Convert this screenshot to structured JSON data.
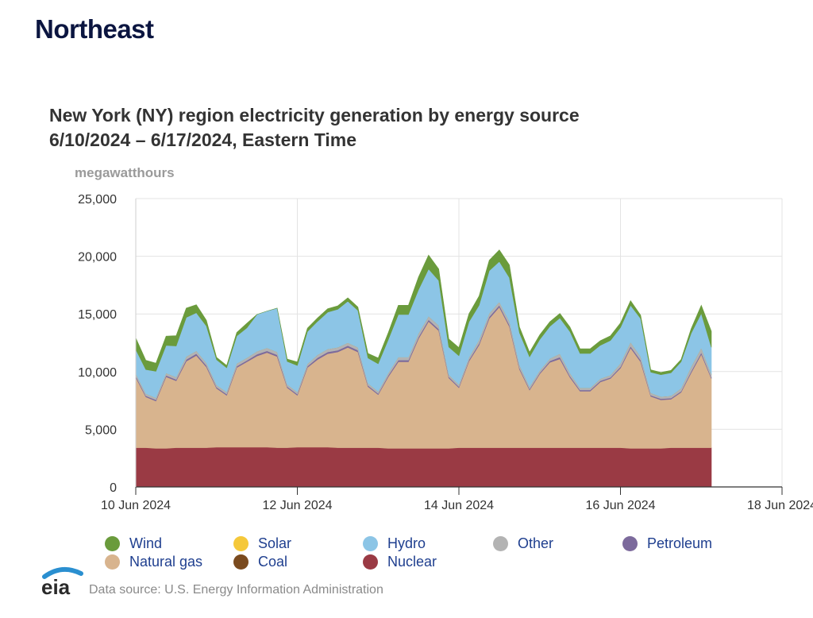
{
  "page": {
    "section_title": "Northeast"
  },
  "chart_data": {
    "type": "area",
    "stacked": true,
    "title": "New York (NY) region electricity generation by energy source",
    "subtitle": "6/10/2024 – 6/17/2024, Eastern Time",
    "ylabel": "megawatthours",
    "ylim": [
      0,
      25000
    ],
    "yticks": [
      "0",
      "5,000",
      "10,000",
      "15,000",
      "20,000",
      "25,000"
    ],
    "xlim": [
      "2024-06-10T00:00",
      "2024-06-18T00:00"
    ],
    "xticks": [
      "10 Jun 2024",
      "12 Jun 2024",
      "14 Jun 2024",
      "16 Jun 2024",
      "18 Jun 2024"
    ],
    "grid": true,
    "legend_position": "bottom",
    "x": [
      "2024-06-10T00:00",
      "2024-06-10T03:00",
      "2024-06-10T06:00",
      "2024-06-10T09:00",
      "2024-06-10T12:00",
      "2024-06-10T15:00",
      "2024-06-10T18:00",
      "2024-06-10T21:00",
      "2024-06-11T00:00",
      "2024-06-11T03:00",
      "2024-06-11T06:00",
      "2024-06-11T09:00",
      "2024-06-11T12:00",
      "2024-06-11T15:00",
      "2024-06-11T18:00",
      "2024-06-11T21:00",
      "2024-06-12T00:00",
      "2024-06-12T03:00",
      "2024-06-12T06:00",
      "2024-06-12T09:00",
      "2024-06-12T12:00",
      "2024-06-12T15:00",
      "2024-06-12T18:00",
      "2024-06-12T21:00",
      "2024-06-13T00:00",
      "2024-06-13T03:00",
      "2024-06-13T06:00",
      "2024-06-13T09:00",
      "2024-06-13T12:00",
      "2024-06-13T15:00",
      "2024-06-13T18:00",
      "2024-06-13T21:00",
      "2024-06-14T00:00",
      "2024-06-14T03:00",
      "2024-06-14T06:00",
      "2024-06-14T09:00",
      "2024-06-14T12:00",
      "2024-06-14T15:00",
      "2024-06-14T18:00",
      "2024-06-14T21:00",
      "2024-06-15T00:00",
      "2024-06-15T03:00",
      "2024-06-15T06:00",
      "2024-06-15T09:00",
      "2024-06-15T12:00",
      "2024-06-15T15:00",
      "2024-06-15T18:00",
      "2024-06-15T21:00",
      "2024-06-16T00:00",
      "2024-06-16T03:00",
      "2024-06-16T06:00",
      "2024-06-16T09:00",
      "2024-06-16T12:00",
      "2024-06-16T15:00",
      "2024-06-16T18:00",
      "2024-06-16T21:00",
      "2024-06-17T00:00",
      "2024-06-17T03:00"
    ],
    "series": [
      {
        "name": "Nuclear",
        "color": "#9a3a44",
        "values": [
          3400,
          3400,
          3350,
          3350,
          3400,
          3400,
          3400,
          3400,
          3450,
          3450,
          3450,
          3450,
          3450,
          3450,
          3400,
          3400,
          3450,
          3450,
          3450,
          3450,
          3400,
          3400,
          3400,
          3400,
          3400,
          3350,
          3350,
          3350,
          3350,
          3350,
          3350,
          3350,
          3400,
          3400,
          3400,
          3400,
          3400,
          3400,
          3400,
          3400,
          3400,
          3400,
          3400,
          3400,
          3400,
          3400,
          3400,
          3400,
          3400,
          3350,
          3350,
          3350,
          3350,
          3400,
          3400,
          3400,
          3400,
          3400
        ]
      },
      {
        "name": "Natural gas",
        "color": "#d8b48e",
        "values": [
          6100,
          4400,
          4100,
          6200,
          5800,
          7500,
          8000,
          7000,
          5100,
          4500,
          6900,
          7400,
          7900,
          8200,
          7900,
          5200,
          4500,
          6900,
          7600,
          8100,
          8300,
          8700,
          8300,
          5300,
          4600,
          6200,
          7500,
          7500,
          9500,
          11000,
          10200,
          6100,
          5200,
          7500,
          8900,
          11200,
          12200,
          10500,
          6800,
          5000,
          6400,
          7400,
          7700,
          6100,
          4900,
          4900,
          5700,
          6000,
          6900,
          8700,
          7500,
          4500,
          4200,
          4200,
          4800,
          6500,
          8100,
          6000
        ]
      },
      {
        "name": "Petroleum",
        "color": "#7c6a9c",
        "values": [
          120,
          100,
          100,
          120,
          120,
          150,
          150,
          130,
          100,
          100,
          120,
          120,
          150,
          150,
          150,
          100,
          100,
          120,
          150,
          150,
          150,
          150,
          150,
          100,
          100,
          120,
          150,
          150,
          150,
          150,
          150,
          100,
          100,
          120,
          150,
          150,
          150,
          150,
          120,
          100,
          100,
          120,
          150,
          120,
          100,
          100,
          100,
          100,
          120,
          150,
          150,
          100,
          100,
          100,
          100,
          120,
          150,
          100
        ]
      },
      {
        "name": "Other",
        "color": "#b3b3b3",
        "values": [
          200,
          180,
          180,
          200,
          200,
          250,
          250,
          220,
          180,
          180,
          220,
          220,
          250,
          250,
          250,
          180,
          180,
          200,
          250,
          250,
          250,
          250,
          250,
          180,
          180,
          200,
          250,
          250,
          300,
          300,
          300,
          180,
          180,
          200,
          300,
          300,
          300,
          300,
          250,
          180,
          180,
          200,
          300,
          250,
          180,
          180,
          180,
          200,
          300,
          350,
          300,
          200,
          180,
          200,
          250,
          400,
          400,
          250
        ]
      },
      {
        "name": "Coal",
        "color": "#7a4a1e",
        "values": [
          0,
          0,
          0,
          0,
          0,
          0,
          0,
          0,
          0,
          0,
          0,
          0,
          0,
          0,
          0,
          0,
          0,
          0,
          0,
          0,
          0,
          0,
          0,
          0,
          0,
          0,
          0,
          0,
          0,
          0,
          0,
          0,
          0,
          0,
          0,
          0,
          0,
          0,
          0,
          0,
          0,
          0,
          0,
          0,
          0,
          0,
          0,
          0,
          0,
          0,
          0,
          0,
          0,
          0,
          0,
          0,
          0,
          0
        ]
      },
      {
        "name": "Solar",
        "color": "#f5c83a",
        "values": [
          0,
          0,
          0,
          0,
          0,
          0,
          0,
          0,
          0,
          0,
          0,
          0,
          0,
          0,
          0,
          0,
          0,
          0,
          0,
          0,
          0,
          0,
          0,
          0,
          0,
          0,
          0,
          0,
          0,
          0,
          0,
          0,
          0,
          0,
          0,
          0,
          0,
          0,
          0,
          0,
          0,
          0,
          0,
          0,
          0,
          0,
          0,
          0,
          0,
          0,
          0,
          0,
          0,
          0,
          0,
          0,
          0,
          0
        ]
      },
      {
        "name": "Hydro",
        "color": "#8cc5e6",
        "values": [
          2100,
          2100,
          2300,
          2400,
          2700,
          3400,
          3300,
          3200,
          2200,
          2100,
          2400,
          2600,
          3200,
          3200,
          3800,
          2000,
          2300,
          2800,
          2900,
          3200,
          3300,
          3600,
          3200,
          2200,
          2400,
          2900,
          3700,
          3700,
          3800,
          4100,
          3900,
          2400,
          2500,
          3100,
          3000,
          3700,
          3500,
          3800,
          2800,
          2600,
          2700,
          2800,
          3100,
          3600,
          3000,
          3000,
          2900,
          3000,
          3100,
          3200,
          3300,
          1800,
          1900,
          2000,
          2300,
          2900,
          3000,
          2350
        ]
      },
      {
        "name": "Wind",
        "color": "#6a9b3c",
        "values": [
          1000,
          800,
          700,
          800,
          900,
          800,
          700,
          500,
          200,
          200,
          300,
          400,
          0,
          0,
          0,
          200,
          300,
          300,
          300,
          300,
          300,
          300,
          300,
          400,
          500,
          600,
          800,
          800,
          1100,
          1200,
          1000,
          700,
          700,
          700,
          800,
          900,
          1000,
          1100,
          500,
          400,
          400,
          400,
          400,
          400,
          400,
          400,
          400,
          400,
          400,
          400,
          300,
          200,
          200,
          200,
          200,
          400,
          700,
          1400
        ]
      }
    ],
    "legend": [
      [
        "Wind",
        "Solar",
        "Hydro",
        "Other",
        "Petroleum"
      ],
      [
        "Natural gas",
        "Coal",
        "Nuclear"
      ]
    ]
  },
  "footer": {
    "logo_text": "eia",
    "source": "Data source: U.S. Energy Information Administration"
  }
}
